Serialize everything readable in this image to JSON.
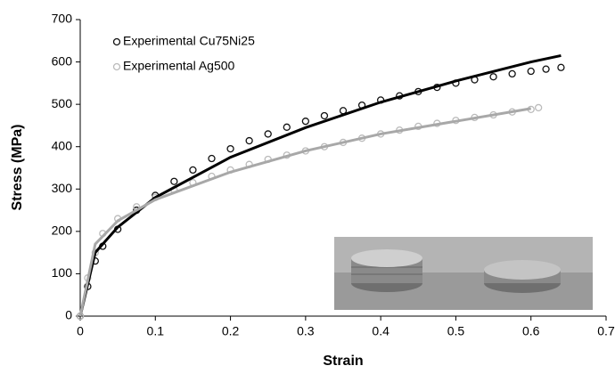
{
  "chart_data": {
    "type": "scatter",
    "x_label": "Strain",
    "y_label": "Stress (MPa)",
    "xlim": [
      0,
      0.7
    ],
    "xticks": [
      0,
      0.1,
      0.2,
      0.3,
      0.4,
      0.5,
      0.6,
      0.7
    ],
    "ylim": [
      0,
      700
    ],
    "yticks": [
      0,
      100,
      200,
      300,
      400,
      500,
      600,
      700
    ],
    "legend": "upper left",
    "series": [
      {
        "name": "Experimental Cu75Ni25",
        "color": "#111111",
        "marker": "circle",
        "x": [
          0,
          0.01,
          0.02,
          0.03,
          0.05,
          0.075,
          0.1,
          0.125,
          0.15,
          0.175,
          0.2,
          0.225,
          0.25,
          0.275,
          0.3,
          0.325,
          0.35,
          0.375,
          0.4,
          0.425,
          0.45,
          0.475,
          0.5,
          0.525,
          0.55,
          0.575,
          0.6,
          0.62,
          0.64
        ],
        "values": [
          0,
          70,
          130,
          165,
          205,
          250,
          285,
          318,
          345,
          372,
          395,
          414,
          430,
          446,
          460,
          473,
          485,
          498,
          510,
          520,
          530,
          540,
          550,
          558,
          565,
          572,
          578,
          583,
          587
        ]
      },
      {
        "name": "Experimental Ag500",
        "color": "#bbbbbb",
        "marker": "circle",
        "x": [
          0,
          0.01,
          0.02,
          0.03,
          0.05,
          0.075,
          0.1,
          0.125,
          0.15,
          0.175,
          0.2,
          0.225,
          0.25,
          0.275,
          0.3,
          0.325,
          0.35,
          0.375,
          0.4,
          0.425,
          0.45,
          0.475,
          0.5,
          0.525,
          0.55,
          0.575,
          0.6,
          0.61
        ],
        "values": [
          0,
          90,
          150,
          195,
          230,
          258,
          280,
          298,
          315,
          330,
          345,
          358,
          370,
          380,
          390,
          400,
          410,
          420,
          430,
          439,
          448,
          455,
          462,
          469,
          475,
          482,
          488,
          492
        ]
      },
      {
        "color": "#000000",
        "marker": "line",
        "x": [
          0,
          0.02,
          0.05,
          0.1,
          0.2,
          0.3,
          0.4,
          0.5,
          0.6,
          0.64
        ],
        "values": [
          0,
          150,
          210,
          280,
          375,
          445,
          505,
          555,
          600,
          615
        ]
      },
      {
        "color": "#a8a8a8",
        "marker": "line",
        "x": [
          0,
          0.02,
          0.05,
          0.1,
          0.2,
          0.3,
          0.4,
          0.5,
          0.6
        ],
        "values": [
          0,
          170,
          225,
          275,
          340,
          390,
          430,
          460,
          490
        ]
      }
    ]
  }
}
